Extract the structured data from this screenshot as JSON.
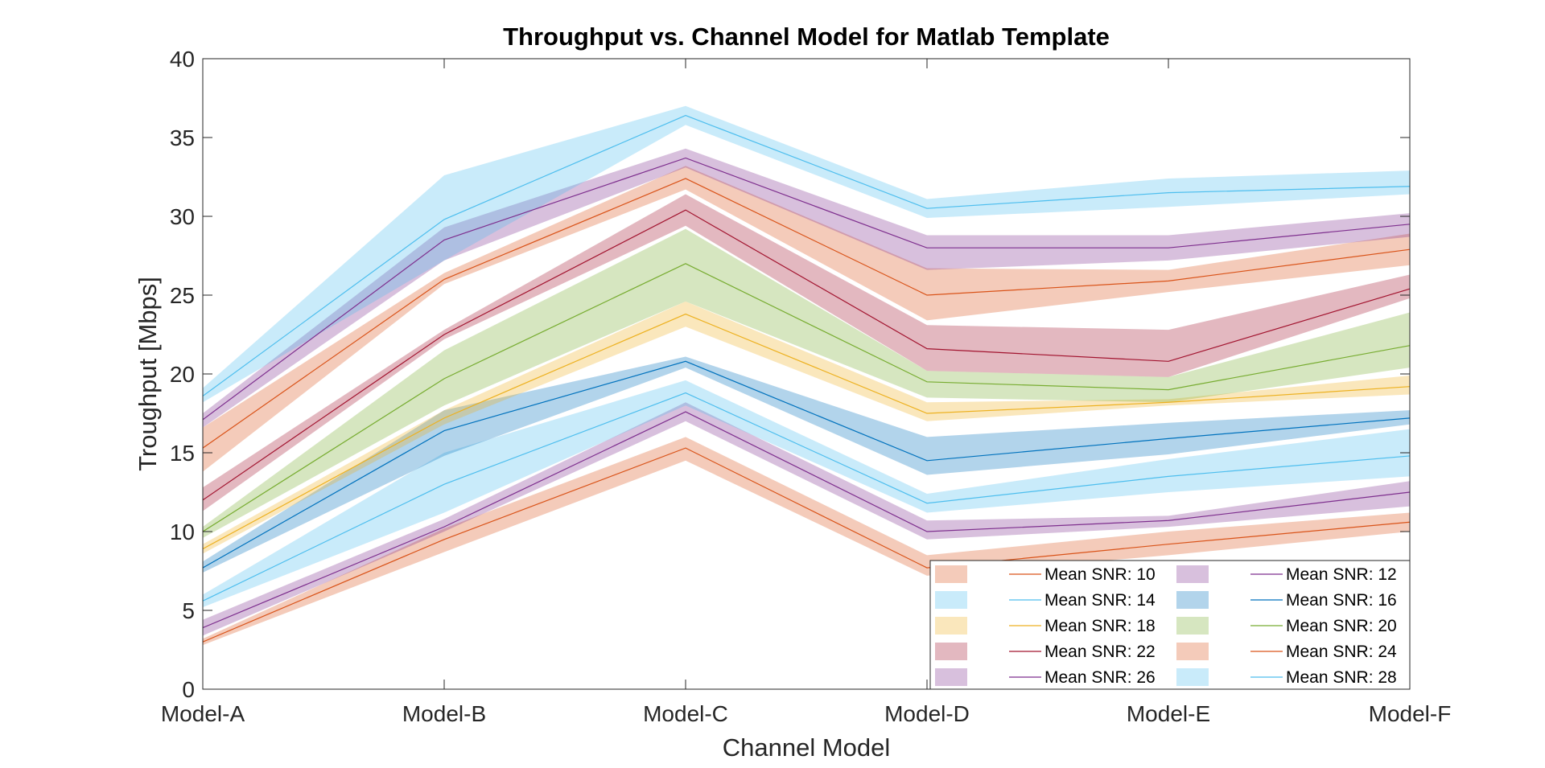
{
  "chart_data": {
    "type": "line",
    "title": "Throughput vs. Channel Model for Matlab Template",
    "xlabel": "Channel Model",
    "ylabel": "Troughput [Mbps]",
    "categories": [
      "Model-A",
      "Model-B",
      "Model-C",
      "Model-D",
      "Model-E",
      "Model-F"
    ],
    "ylim": [
      0,
      40
    ],
    "yticks": [
      0,
      5,
      10,
      15,
      20,
      25,
      30,
      35,
      40
    ],
    "grid": false,
    "legend_position": "bottom-right",
    "series": [
      {
        "name": "Mean SNR: 10",
        "color": "#D95319",
        "values": [
          3.0,
          9.5,
          15.3,
          7.7,
          9.2,
          10.6
        ],
        "lower": [
          2.8,
          8.7,
          14.5,
          7.2,
          8.5,
          10.0
        ],
        "upper": [
          3.2,
          10.2,
          16.0,
          8.5,
          10.0,
          11.2
        ]
      },
      {
        "name": "Mean SNR: 12",
        "color": "#7E2F8E",
        "values": [
          3.9,
          10.3,
          17.6,
          10.0,
          10.7,
          12.5
        ],
        "lower": [
          3.4,
          10.0,
          17.0,
          9.5,
          10.3,
          11.6
        ],
        "upper": [
          4.4,
          10.8,
          18.2,
          10.7,
          11.0,
          13.2
        ]
      },
      {
        "name": "Mean SNR: 14",
        "color": "#4DBEEE",
        "values": [
          5.6,
          13.0,
          18.8,
          11.8,
          13.5,
          14.8
        ],
        "lower": [
          5.2,
          11.2,
          18.0,
          11.2,
          12.5,
          13.5
        ],
        "upper": [
          6.0,
          15.0,
          19.6,
          12.4,
          14.6,
          16.5
        ]
      },
      {
        "name": "Mean SNR: 16",
        "color": "#0072BD",
        "values": [
          7.7,
          16.4,
          20.8,
          14.5,
          15.9,
          17.2
        ],
        "lower": [
          7.4,
          14.8,
          20.4,
          13.6,
          14.9,
          16.8
        ],
        "upper": [
          8.1,
          17.7,
          21.1,
          16.0,
          16.9,
          17.7
        ]
      },
      {
        "name": "Mean SNR: 18",
        "color": "#EDB120",
        "values": [
          8.9,
          17.2,
          23.8,
          17.5,
          18.2,
          19.2
        ],
        "lower": [
          8.6,
          16.8,
          23.0,
          17.0,
          18.0,
          18.7
        ],
        "upper": [
          9.2,
          17.7,
          24.6,
          18.2,
          18.4,
          19.9
        ]
      },
      {
        "name": "Mean SNR: 20",
        "color": "#77AC30",
        "values": [
          10.0,
          19.7,
          27.0,
          19.5,
          19.0,
          21.8
        ],
        "lower": [
          9.6,
          18.0,
          24.6,
          18.5,
          18.2,
          20.4
        ],
        "upper": [
          10.3,
          21.5,
          29.2,
          20.2,
          19.8,
          23.9
        ]
      },
      {
        "name": "Mean SNR: 22",
        "color": "#A2142F",
        "values": [
          12.0,
          22.5,
          30.4,
          21.6,
          20.8,
          25.4
        ],
        "lower": [
          11.3,
          22.2,
          29.4,
          20.2,
          19.8,
          24.8
        ],
        "upper": [
          12.8,
          22.8,
          31.4,
          23.1,
          22.8,
          26.3
        ]
      },
      {
        "name": "Mean SNR: 24",
        "color": "#D95319",
        "values": [
          15.3,
          26.0,
          32.4,
          25.0,
          25.9,
          27.9
        ],
        "lower": [
          13.8,
          25.7,
          31.7,
          23.4,
          25.2,
          26.9
        ],
        "upper": [
          16.6,
          26.4,
          33.2,
          26.7,
          26.6,
          28.9
        ]
      },
      {
        "name": "Mean SNR: 26",
        "color": "#7E2F8E",
        "values": [
          17.1,
          28.5,
          33.7,
          28.0,
          28.0,
          29.5
        ],
        "lower": [
          16.6,
          27.2,
          33.1,
          26.6,
          27.2,
          28.7
        ],
        "upper": [
          17.5,
          29.3,
          34.3,
          28.8,
          28.8,
          30.2
        ]
      },
      {
        "name": "Mean SNR: 28",
        "color": "#4DBEEE",
        "values": [
          18.6,
          29.8,
          36.4,
          30.5,
          31.5,
          31.9
        ],
        "lower": [
          18.2,
          27.2,
          35.8,
          29.9,
          30.6,
          31.4
        ],
        "upper": [
          19.1,
          32.6,
          37.0,
          31.1,
          32.4,
          32.9
        ]
      }
    ]
  }
}
